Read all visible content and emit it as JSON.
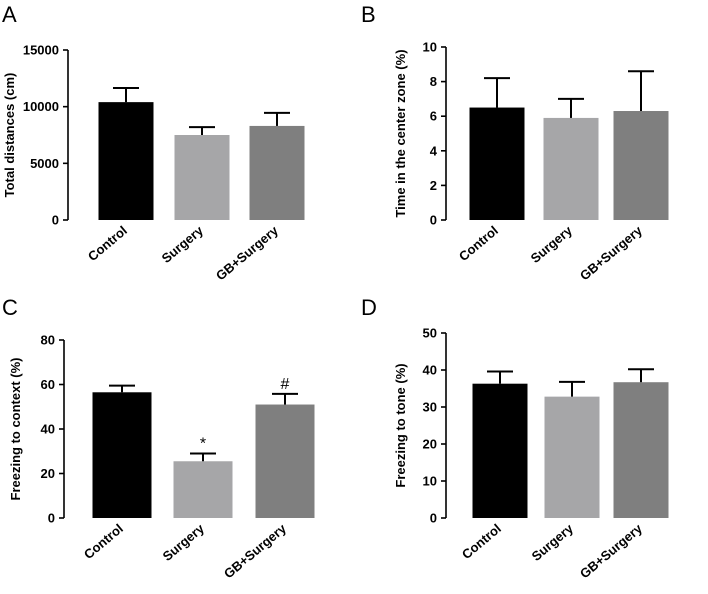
{
  "chart_data": [
    {
      "panel": "A",
      "type": "bar",
      "categories": [
        "Control",
        "Surgery",
        "GB+Surgery"
      ],
      "values": [
        10400,
        7500,
        8300
      ],
      "errors": [
        1250,
        700,
        1150
      ],
      "colors": [
        "#000000",
        "#a6a6a8",
        "#7f7f7f"
      ],
      "ylabel": "Total distances (cm)",
      "ylim": [
        0,
        15000
      ],
      "yticks": [
        0,
        5000,
        10000,
        15000
      ],
      "annotations": [
        "",
        "",
        ""
      ]
    },
    {
      "panel": "B",
      "type": "bar",
      "categories": [
        "Control",
        "Surgery",
        "GB+Surgery"
      ],
      "values": [
        6.5,
        5.9,
        6.3
      ],
      "errors": [
        1.7,
        1.1,
        2.3
      ],
      "colors": [
        "#000000",
        "#a6a6a8",
        "#7f7f7f"
      ],
      "ylabel": "Time in the center zone  (%)",
      "ylim": [
        0,
        10
      ],
      "yticks": [
        0,
        2,
        4,
        6,
        8,
        10
      ],
      "annotations": [
        "",
        "",
        ""
      ]
    },
    {
      "panel": "C",
      "type": "bar",
      "categories": [
        "Control",
        "Surgery",
        "GB+Surgery"
      ],
      "values": [
        56.5,
        25.5,
        51.0
      ],
      "errors": [
        3.0,
        3.5,
        4.8
      ],
      "colors": [
        "#000000",
        "#a6a6a8",
        "#7f7f7f"
      ],
      "ylabel": "Freezing to context (%)",
      "ylim": [
        0,
        80
      ],
      "yticks": [
        0,
        20,
        40,
        60,
        80
      ],
      "annotations": [
        "",
        "*",
        "#"
      ]
    },
    {
      "panel": "D",
      "type": "bar",
      "categories": [
        "Control",
        "Surgery",
        "GB+Surgery"
      ],
      "values": [
        36.3,
        32.8,
        36.7
      ],
      "errors": [
        3.3,
        4.0,
        3.5
      ],
      "colors": [
        "#000000",
        "#a6a6a8",
        "#7f7f7f"
      ],
      "ylabel": "Freezing to tone (%)",
      "ylim": [
        0,
        50
      ],
      "yticks": [
        0,
        10,
        20,
        30,
        40,
        50
      ],
      "annotations": [
        "",
        "",
        ""
      ]
    }
  ]
}
